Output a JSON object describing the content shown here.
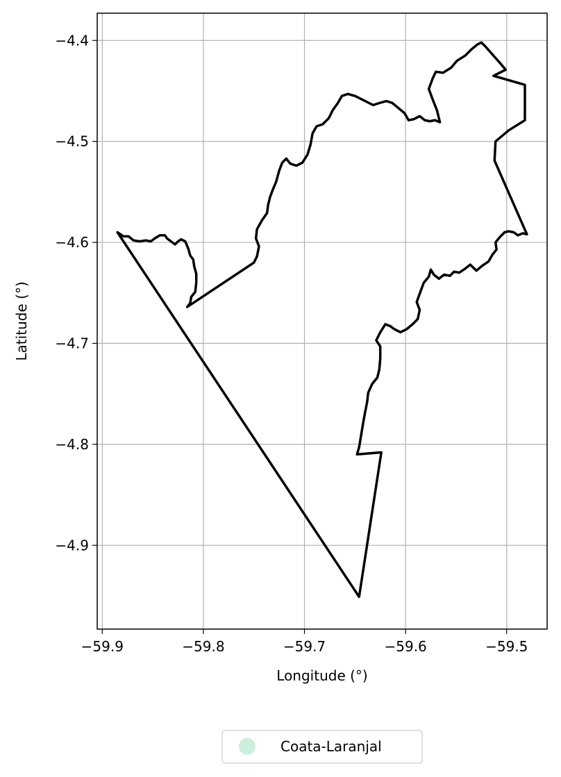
{
  "chart_data": {
    "type": "map",
    "xlabel": "Longitude (°)",
    "ylabel": "Latitude (°)",
    "xlim": [
      -59.905,
      -59.46
    ],
    "ylim": [
      -4.983,
      -4.373
    ],
    "grid": true,
    "legend_placement": "bottom-center",
    "x_ticks": [
      {
        "value": -59.9,
        "label": "−59.9"
      },
      {
        "value": -59.8,
        "label": "−59.8"
      },
      {
        "value": -59.7,
        "label": "−59.7"
      },
      {
        "value": -59.6,
        "label": "−59.6"
      },
      {
        "value": -59.5,
        "label": "−59.5"
      }
    ],
    "y_ticks": [
      {
        "value": -4.4,
        "label": "−4.4"
      },
      {
        "value": -4.5,
        "label": "−4.5"
      },
      {
        "value": -4.6,
        "label": "−4.6"
      },
      {
        "value": -4.7,
        "label": "−4.7"
      },
      {
        "value": -4.8,
        "label": "−4.8"
      },
      {
        "value": -4.9,
        "label": "−4.9"
      }
    ],
    "legend": [
      {
        "label": "Coata-Laranjal",
        "color": "#cdeedd"
      }
    ],
    "boundary_color": "#000000",
    "boundary": [
      [
        -59.885,
        -4.59
      ],
      [
        -59.879,
        -4.594
      ],
      [
        -59.874,
        -4.594
      ],
      [
        -59.869,
        -4.598
      ],
      [
        -59.863,
        -4.599
      ],
      [
        -59.857,
        -4.598
      ],
      [
        -59.852,
        -4.599
      ],
      [
        -59.848,
        -4.596
      ],
      [
        -59.843,
        -4.593
      ],
      [
        -59.838,
        -4.593
      ],
      [
        -59.836,
        -4.596
      ],
      [
        -59.832,
        -4.599
      ],
      [
        -59.828,
        -4.602
      ],
      [
        -59.825,
        -4.599
      ],
      [
        -59.822,
        -4.597
      ],
      [
        -59.818,
        -4.599
      ],
      [
        -59.815,
        -4.606
      ],
      [
        -59.813,
        -4.613
      ],
      [
        -59.81,
        -4.617
      ],
      [
        -59.809,
        -4.624
      ],
      [
        -59.807,
        -4.631
      ],
      [
        -59.807,
        -4.64
      ],
      [
        -59.808,
        -4.649
      ],
      [
        -59.812,
        -4.654
      ],
      [
        -59.813,
        -4.66
      ],
      [
        -59.816,
        -4.664
      ],
      [
        -59.75,
        -4.62
      ],
      [
        -59.747,
        -4.614
      ],
      [
        -59.745,
        -4.604
      ],
      [
        -59.748,
        -4.596
      ],
      [
        -59.747,
        -4.587
      ],
      [
        -59.742,
        -4.578
      ],
      [
        -59.737,
        -4.571
      ],
      [
        -59.736,
        -4.563
      ],
      [
        -59.734,
        -4.555
      ],
      [
        -59.731,
        -4.547
      ],
      [
        -59.728,
        -4.54
      ],
      [
        -59.725,
        -4.529
      ],
      [
        -59.722,
        -4.521
      ],
      [
        -59.718,
        -4.517
      ],
      [
        -59.714,
        -4.522
      ],
      [
        -59.708,
        -4.524
      ],
      [
        -59.702,
        -4.521
      ],
      [
        -59.697,
        -4.513
      ],
      [
        -59.694,
        -4.503
      ],
      [
        -59.692,
        -4.492
      ],
      [
        -59.688,
        -4.485
      ],
      [
        -59.682,
        -4.483
      ],
      [
        -59.676,
        -4.477
      ],
      [
        -59.672,
        -4.469
      ],
      [
        -59.667,
        -4.462
      ],
      [
        -59.663,
        -4.455
      ],
      [
        -59.657,
        -4.453
      ],
      [
        -59.65,
        -4.455
      ],
      [
        -59.644,
        -4.458
      ],
      [
        -59.638,
        -4.461
      ],
      [
        -59.632,
        -4.464
      ],
      [
        -59.626,
        -4.462
      ],
      [
        -59.619,
        -4.46
      ],
      [
        -59.613,
        -4.462
      ],
      [
        -59.607,
        -4.467
      ],
      [
        -59.601,
        -4.472
      ],
      [
        -59.597,
        -4.479
      ],
      [
        -59.592,
        -4.478
      ],
      [
        -59.586,
        -4.475
      ],
      [
        -59.581,
        -4.479
      ],
      [
        -59.576,
        -4.48
      ],
      [
        -59.571,
        -4.479
      ],
      [
        -59.566,
        -4.481
      ],
      [
        -59.569,
        -4.469
      ],
      [
        -59.573,
        -4.459
      ],
      [
        -59.577,
        -4.448
      ],
      [
        -59.573,
        -4.437
      ],
      [
        -59.57,
        -4.431
      ],
      [
        -59.563,
        -4.432
      ],
      [
        -59.555,
        -4.427
      ],
      [
        -59.549,
        -4.42
      ],
      [
        -59.541,
        -4.415
      ],
      [
        -59.535,
        -4.409
      ],
      [
        -59.529,
        -4.404
      ],
      [
        -59.525,
        -4.402
      ],
      [
        -59.521,
        -4.406
      ],
      [
        -59.514,
        -4.414
      ],
      [
        -59.506,
        -4.423
      ],
      [
        -59.501,
        -4.429
      ],
      [
        -59.513,
        -4.435
      ],
      [
        -59.482,
        -4.444
      ],
      [
        -59.482,
        -4.479
      ],
      [
        -59.498,
        -4.489
      ],
      [
        -59.511,
        -4.5
      ],
      [
        -59.512,
        -4.519
      ],
      [
        -59.48,
        -4.592
      ],
      [
        -59.484,
        -4.591
      ],
      [
        -59.489,
        -4.593
      ],
      [
        -59.493,
        -4.59
      ],
      [
        -59.498,
        -4.589
      ],
      [
        -59.502,
        -4.59
      ],
      [
        -59.507,
        -4.595
      ],
      [
        -59.511,
        -4.6
      ],
      [
        -59.51,
        -4.607
      ],
      [
        -59.514,
        -4.612
      ],
      [
        -59.518,
        -4.619
      ],
      [
        -59.524,
        -4.623
      ],
      [
        -59.53,
        -4.628
      ],
      [
        -59.536,
        -4.622
      ],
      [
        -59.541,
        -4.626
      ],
      [
        -59.547,
        -4.63
      ],
      [
        -59.552,
        -4.629
      ],
      [
        -59.556,
        -4.633
      ],
      [
        -59.562,
        -4.632
      ],
      [
        -59.567,
        -4.636
      ],
      [
        -59.572,
        -4.632
      ],
      [
        -59.575,
        -4.627
      ],
      [
        -59.577,
        -4.634
      ],
      [
        -59.582,
        -4.64
      ],
      [
        -59.585,
        -4.648
      ],
      [
        -59.589,
        -4.659
      ],
      [
        -59.586,
        -4.667
      ],
      [
        -59.588,
        -4.676
      ],
      [
        -59.593,
        -4.681
      ],
      [
        -59.599,
        -4.686
      ],
      [
        -59.605,
        -4.689
      ],
      [
        -59.611,
        -4.686
      ],
      [
        -59.615,
        -4.683
      ],
      [
        -59.62,
        -4.681
      ],
      [
        -59.625,
        -4.689
      ],
      [
        -59.629,
        -4.697
      ],
      [
        -59.625,
        -4.703
      ],
      [
        -59.625,
        -4.715
      ],
      [
        -59.626,
        -4.726
      ],
      [
        -59.628,
        -4.734
      ],
      [
        -59.633,
        -4.74
      ],
      [
        -59.637,
        -4.749
      ],
      [
        -59.638,
        -4.758
      ],
      [
        -59.64,
        -4.768
      ],
      [
        -59.642,
        -4.779
      ],
      [
        -59.644,
        -4.791
      ],
      [
        -59.646,
        -4.803
      ],
      [
        -59.648,
        -4.81
      ],
      [
        -59.624,
        -4.808
      ],
      [
        -59.646,
        -4.951
      ],
      [
        -59.885,
        -4.59
      ]
    ]
  }
}
